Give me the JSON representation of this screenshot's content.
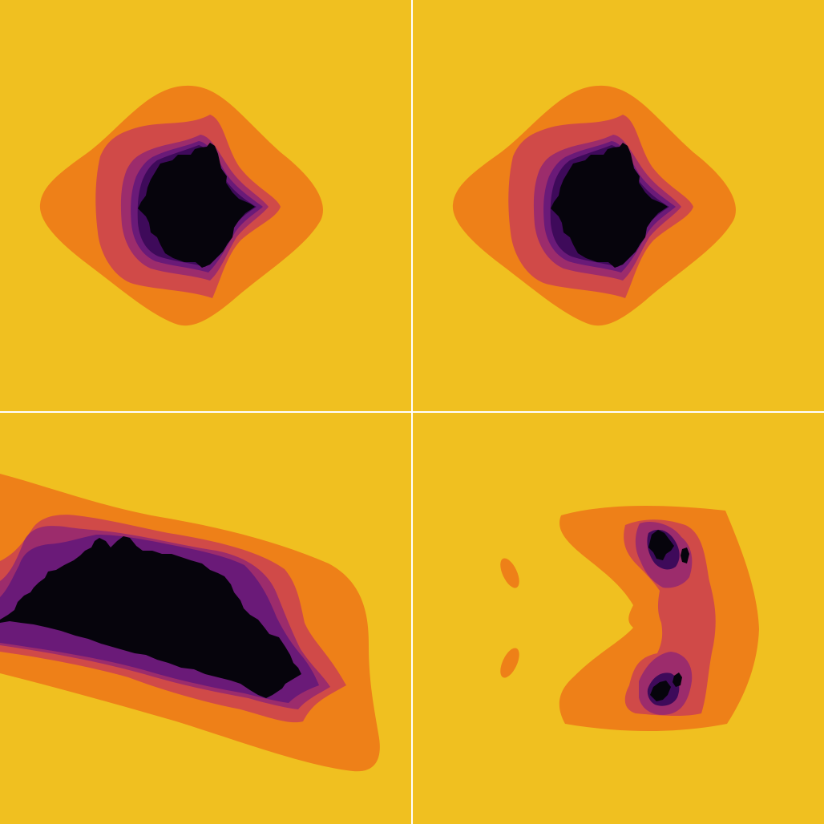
{
  "palette": {
    "background": "#f0c020",
    "level1": "#ee8018",
    "level2": "#d04a48",
    "level3": "#9c2c6c",
    "level4": "#6a1a78",
    "level5": "#3e0a5a",
    "core": "#06040c",
    "separator": "#ffffff"
  },
  "panels": [
    {
      "name": "top-left"
    },
    {
      "name": "top-right"
    },
    {
      "name": "bottom-left"
    },
    {
      "name": "bottom-right"
    }
  ]
}
